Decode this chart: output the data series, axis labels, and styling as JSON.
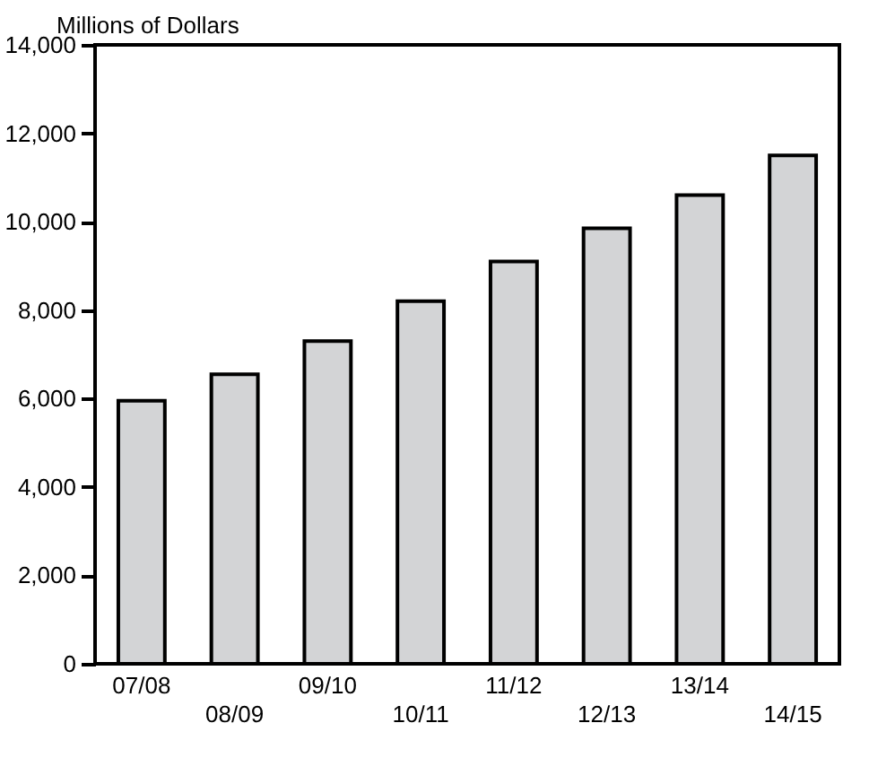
{
  "chart_data": {
    "type": "bar",
    "ylabel": "Millions of Dollars",
    "categories": [
      "07/08",
      "08/09",
      "09/10",
      "10/11",
      "11/12",
      "12/13",
      "13/14",
      "14/15"
    ],
    "values": [
      5950,
      6550,
      7300,
      8200,
      9100,
      9850,
      10600,
      11500
    ],
    "color": "#d3d4d6",
    "ylim": [
      0,
      14000
    ],
    "yticks": [
      0,
      {
        "value": 2000,
        "label": "2,000"
      },
      {
        "value": 4000,
        "label": "4,000"
      },
      {
        "value": 6000,
        "label": "6,000"
      },
      {
        "value": 8000,
        "label": "8,000"
      },
      {
        "value": 10000,
        "label": "10,000"
      },
      {
        "value": 12000,
        "label": "12,000"
      },
      {
        "value": 14000,
        "label": "14,000"
      }
    ],
    "grid": false
  }
}
